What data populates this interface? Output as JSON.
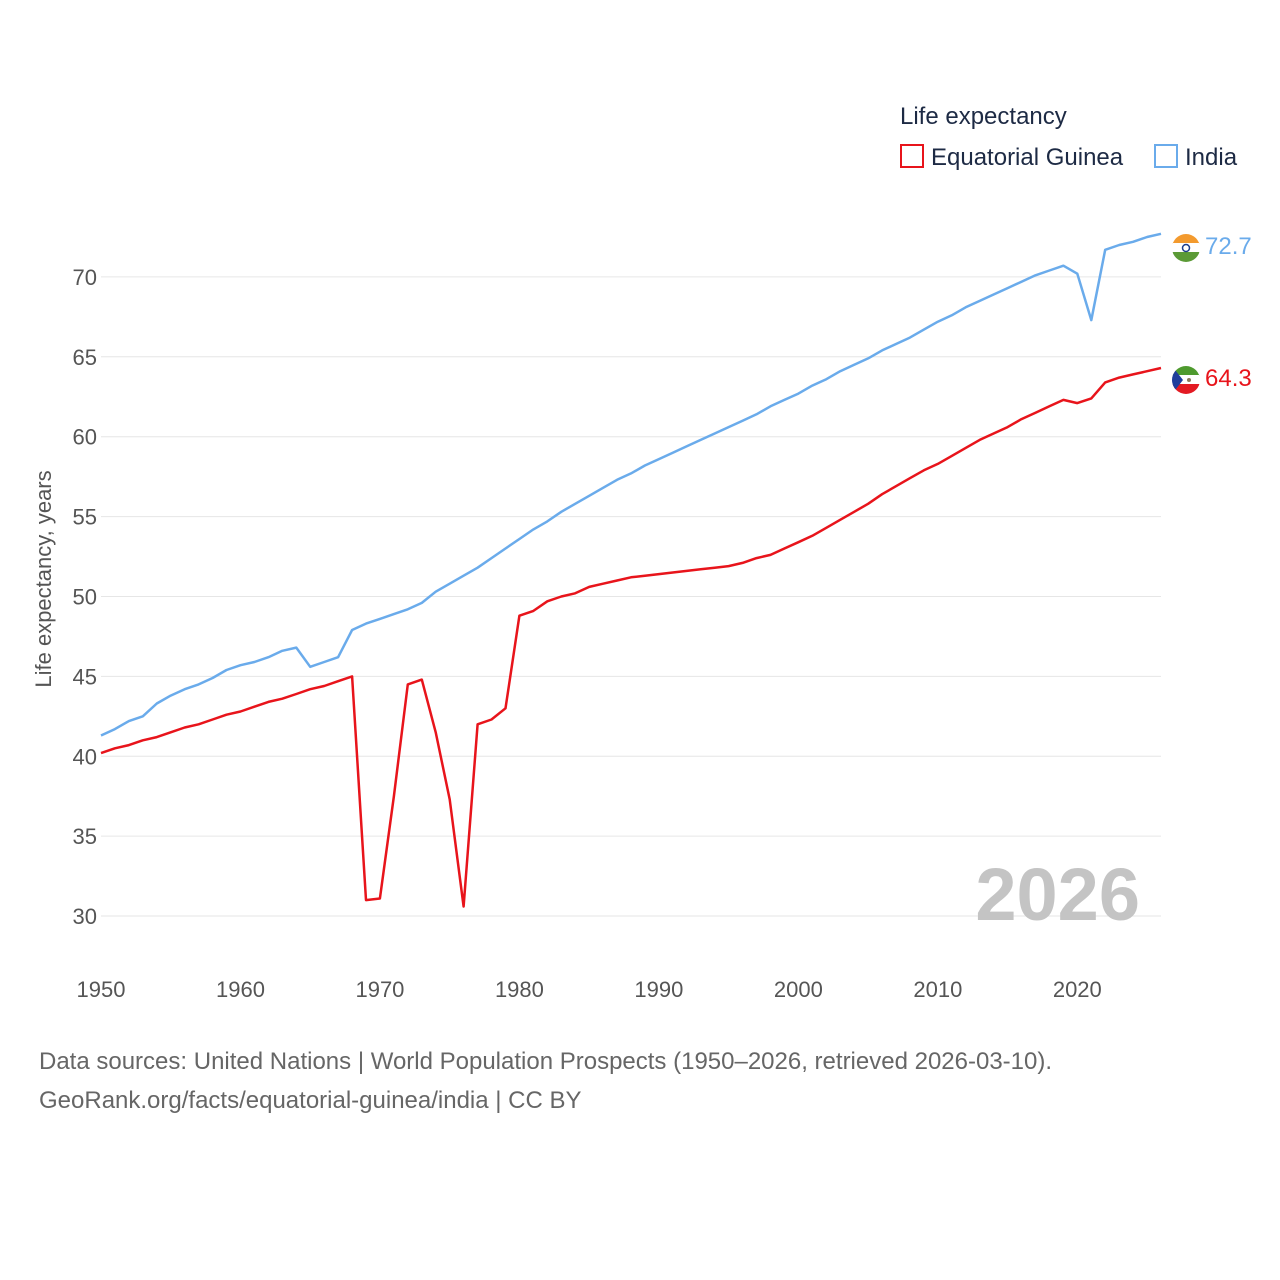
{
  "chart_data": {
    "type": "line",
    "legend_title": "Life expectancy",
    "ylabel": "Life expectancy, years",
    "xlim": [
      1950,
      2026
    ],
    "ylim": [
      27.5,
      74
    ],
    "yticks": [
      30,
      35,
      40,
      45,
      50,
      55,
      60,
      65,
      70
    ],
    "xticks": [
      1950,
      1960,
      1970,
      1980,
      1990,
      2000,
      2010,
      2020
    ],
    "year_label": "2026",
    "legend_placement": "top-right",
    "series": [
      {
        "name": "Equatorial Guinea",
        "color": "#e8141b",
        "end_label": "64.3",
        "flag": "equatorial-guinea-flag-icon",
        "x": [
          1950,
          1951,
          1952,
          1953,
          1954,
          1955,
          1956,
          1957,
          1958,
          1959,
          1960,
          1961,
          1962,
          1963,
          1964,
          1965,
          1966,
          1967,
          1968,
          1969,
          1970,
          1971,
          1972,
          1973,
          1974,
          1975,
          1976,
          1977,
          1978,
          1979,
          1980,
          1981,
          1982,
          1983,
          1984,
          1985,
          1986,
          1987,
          1988,
          1989,
          1990,
          1991,
          1992,
          1993,
          1994,
          1995,
          1996,
          1997,
          1998,
          1999,
          2000,
          2001,
          2002,
          2003,
          2004,
          2005,
          2006,
          2007,
          2008,
          2009,
          2010,
          2011,
          2012,
          2013,
          2014,
          2015,
          2016,
          2017,
          2018,
          2019,
          2020,
          2021,
          2022,
          2023,
          2024,
          2025,
          2026
        ],
        "values": [
          40.2,
          40.5,
          40.7,
          41.0,
          41.2,
          41.5,
          41.8,
          42.0,
          42.3,
          42.6,
          42.8,
          43.1,
          43.4,
          43.6,
          43.9,
          44.2,
          44.4,
          44.7,
          45.0,
          31.0,
          31.1,
          37.5,
          44.5,
          44.8,
          41.5,
          37.3,
          30.6,
          42.0,
          42.3,
          43.0,
          48.8,
          49.1,
          49.7,
          50.0,
          50.2,
          50.6,
          50.8,
          51.0,
          51.2,
          51.3,
          51.4,
          51.5,
          51.6,
          51.7,
          51.8,
          51.9,
          52.1,
          52.4,
          52.6,
          53.0,
          53.4,
          53.8,
          54.3,
          54.8,
          55.3,
          55.8,
          56.4,
          56.9,
          57.4,
          57.9,
          58.3,
          58.8,
          59.3,
          59.8,
          60.2,
          60.6,
          61.1,
          61.5,
          61.9,
          62.3,
          62.1,
          62.4,
          63.4,
          63.7,
          63.9,
          64.1,
          64.3
        ]
      },
      {
        "name": "India",
        "color": "#6aabeb",
        "end_label": "72.7",
        "flag": "india-flag-icon",
        "x": [
          1950,
          1951,
          1952,
          1953,
          1954,
          1955,
          1956,
          1957,
          1958,
          1959,
          1960,
          1961,
          1962,
          1963,
          1964,
          1965,
          1966,
          1967,
          1968,
          1969,
          1970,
          1971,
          1972,
          1973,
          1974,
          1975,
          1976,
          1977,
          1978,
          1979,
          1980,
          1981,
          1982,
          1983,
          1984,
          1985,
          1986,
          1987,
          1988,
          1989,
          1990,
          1991,
          1992,
          1993,
          1994,
          1995,
          1996,
          1997,
          1998,
          1999,
          2000,
          2001,
          2002,
          2003,
          2004,
          2005,
          2006,
          2007,
          2008,
          2009,
          2010,
          2011,
          2012,
          2013,
          2014,
          2015,
          2016,
          2017,
          2018,
          2019,
          2020,
          2021,
          2022,
          2023,
          2024,
          2025,
          2026
        ],
        "values": [
          41.3,
          41.7,
          42.2,
          42.5,
          43.3,
          43.8,
          44.2,
          44.5,
          44.9,
          45.4,
          45.7,
          45.9,
          46.2,
          46.6,
          46.8,
          45.6,
          45.9,
          46.2,
          47.9,
          48.3,
          48.6,
          48.9,
          49.2,
          49.6,
          50.3,
          50.8,
          51.3,
          51.8,
          52.4,
          53.0,
          53.6,
          54.2,
          54.7,
          55.3,
          55.8,
          56.3,
          56.8,
          57.3,
          57.7,
          58.2,
          58.6,
          59.0,
          59.4,
          59.8,
          60.2,
          60.6,
          61.0,
          61.4,
          61.9,
          62.3,
          62.7,
          63.2,
          63.6,
          64.1,
          64.5,
          64.9,
          65.4,
          65.8,
          66.2,
          66.7,
          67.2,
          67.6,
          68.1,
          68.5,
          68.9,
          69.3,
          69.7,
          70.1,
          70.4,
          70.7,
          70.2,
          67.3,
          71.7,
          72.0,
          72.2,
          72.5,
          72.7
        ]
      }
    ]
  },
  "footer": {
    "source_line": "Data sources: United Nations | World Population Prospects (1950–2026, retrieved 2026-03-10).",
    "url_line": "GeoRank.org/facts/equatorial-guinea/india | CC BY"
  }
}
